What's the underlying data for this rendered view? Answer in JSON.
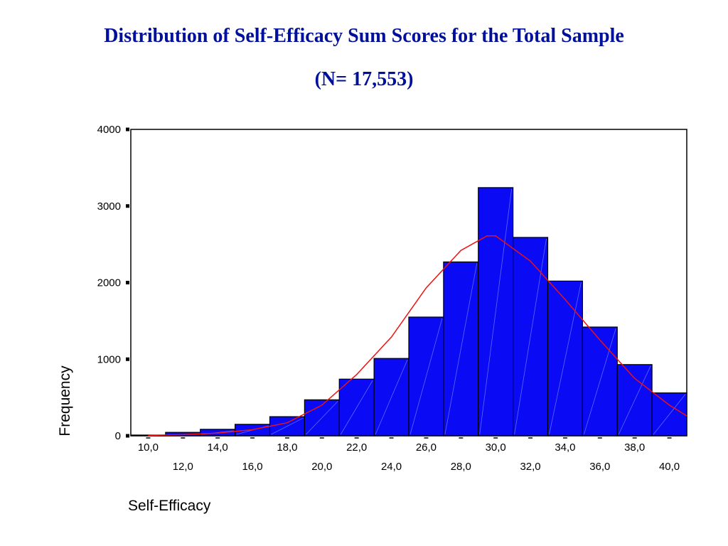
{
  "title": "Distribution of Self-Efficacy Sum Scores for the Total Sample",
  "subtitle": "(N= 17,553)",
  "chart_data": {
    "type": "bar",
    "title": "Distribution of Self-Efficacy Sum Scores for the Total Sample",
    "subtitle": "(N= 17,553)",
    "xlabel": "Self-Efficacy",
    "ylabel": "Frequency",
    "xlim": [
      9,
      41
    ],
    "ylim": [
      0,
      4000
    ],
    "y_ticks": [
      "0",
      "1000",
      "2000",
      "3000",
      "4000"
    ],
    "x_ticks_row1": [
      "10,0",
      "14,0",
      "18,0",
      "22,0",
      "26,0",
      "30,0",
      "34,0",
      "38,0"
    ],
    "x_ticks_row2": [
      "12,0",
      "16,0",
      "20,0",
      "24,0",
      "28,0",
      "32,0",
      "36,0",
      "40,0"
    ],
    "bin_width": 2,
    "categories": [
      10,
      12,
      14,
      16,
      18,
      20,
      22,
      24,
      26,
      28,
      30,
      32,
      34,
      36,
      38,
      40
    ],
    "values": [
      10,
      45,
      85,
      150,
      250,
      470,
      740,
      1010,
      1550,
      2270,
      3240,
      2590,
      2020,
      1420,
      930,
      560
    ],
    "normal_curve": {
      "x": [
        10,
        12,
        14,
        16,
        18,
        20,
        22,
        24,
        26,
        28,
        29.5,
        30,
        32,
        34,
        36,
        38,
        40,
        41
      ],
      "y": [
        5,
        15,
        35,
        80,
        170,
        400,
        800,
        1290,
        1930,
        2420,
        2610,
        2610,
        2280,
        1780,
        1250,
        750,
        400,
        260
      ]
    },
    "grid": false,
    "colors": {
      "bar": "#0a0af5",
      "bar_edge": "#000000",
      "curve": "#ee1111"
    }
  }
}
